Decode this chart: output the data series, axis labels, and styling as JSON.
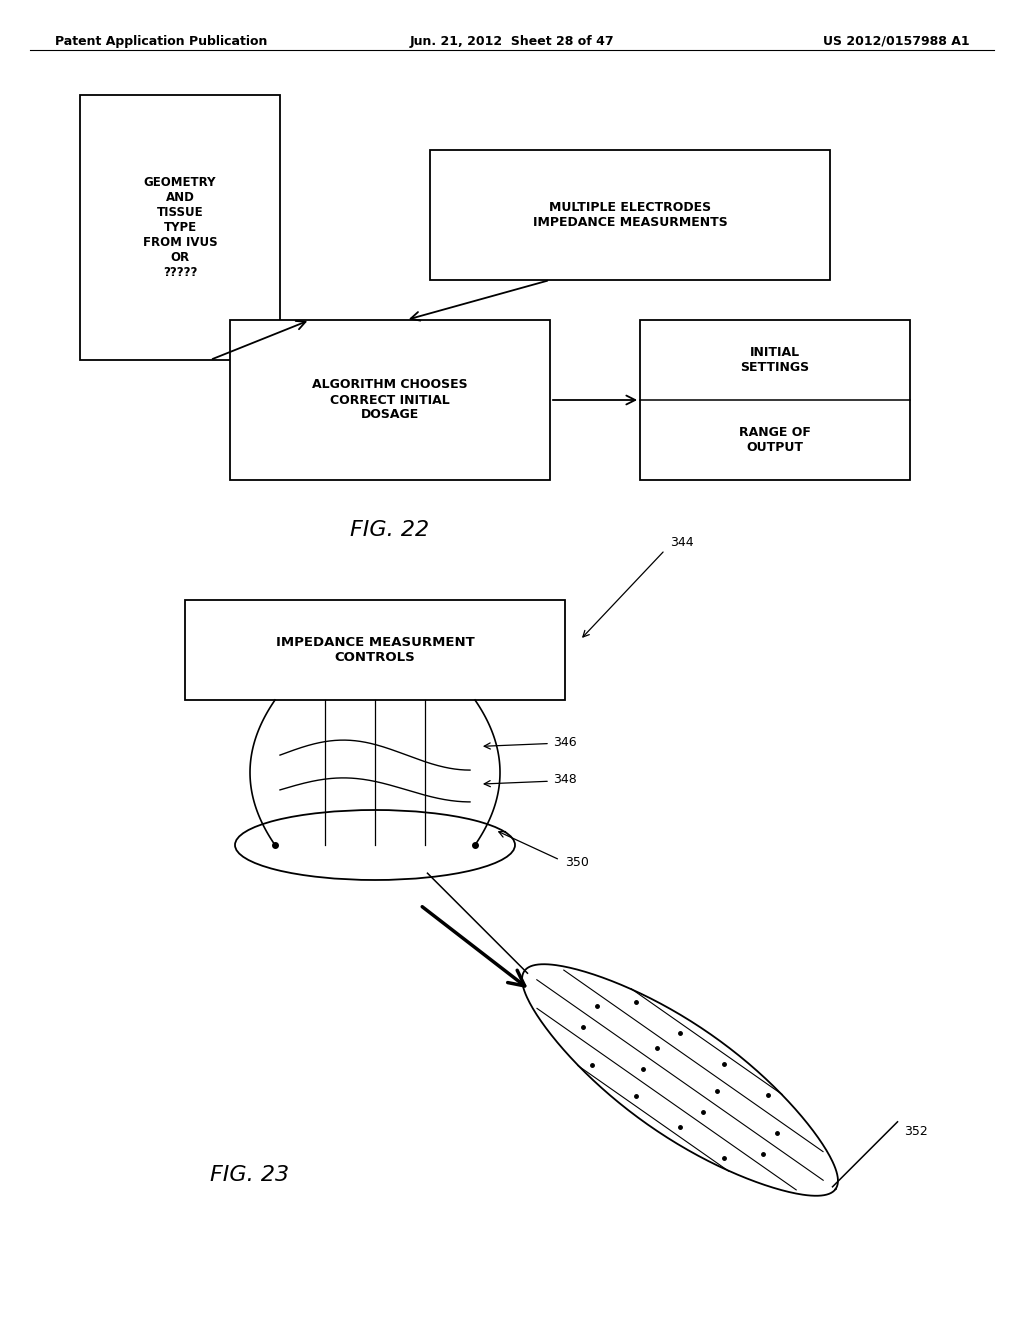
{
  "background_color": "#ffffff",
  "header_left": "Patent Application Publication",
  "header_mid": "Jun. 21, 2012  Sheet 28 of 47",
  "header_right": "US 2012/0157988 A1",
  "fig22_label": "FIG. 22",
  "fig23_label": "FIG. 23",
  "box1_text": "GEOMETRY\nAND\nTISSUE\nTYPE\nFROM IVUS\nOR\n?????",
  "box2_text": "MULTIPLE ELECTRODES\nIMPEDANCE MEASURMENTS",
  "box3_text": "ALGORITHM CHOOSES\nCORRECT INITIAL\nDOSAGE",
  "box4_top_text": "INITIAL\nSETTINGS",
  "box4_bottom_text": "RANGE OF\nOUTPUT",
  "box5_text": "IMPEDANCE MEASURMENT\nCONTROLS",
  "label_344": "344",
  "label_346": "346",
  "label_348": "348",
  "label_350": "350",
  "label_352": "352"
}
